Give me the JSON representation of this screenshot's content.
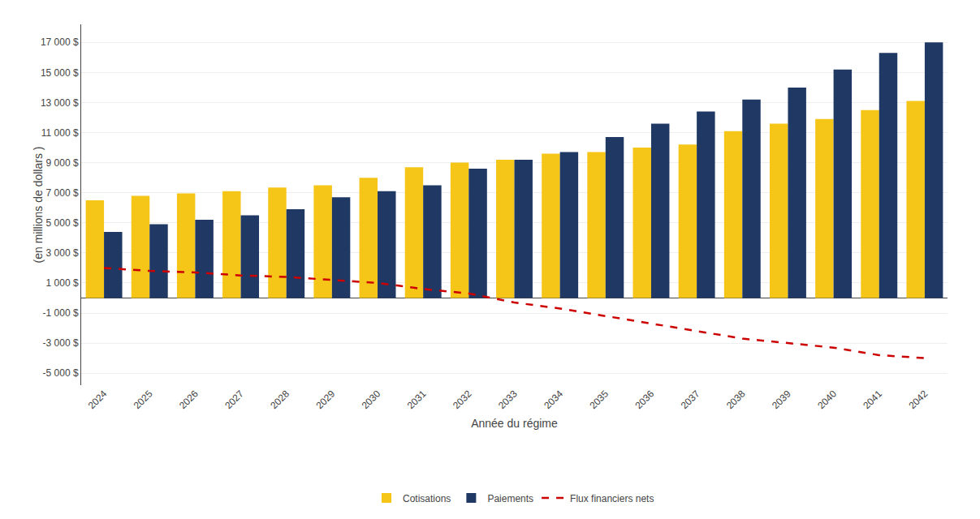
{
  "chart_data": {
    "type": "bar",
    "xlabel": "Année du régime",
    "ylabel": "(en millions de dollars )",
    "categories": [
      "2024",
      "2025",
      "2026",
      "2027",
      "2028",
      "2029",
      "2030",
      "2031",
      "2032",
      "2033",
      "2034",
      "2035",
      "2036",
      "2037",
      "2038",
      "2039",
      "2040",
      "2041",
      "2042"
    ],
    "series": [
      {
        "name": "Cotisations",
        "type": "bar",
        "color": "#F5C518",
        "values": [
          6500,
          6800,
          6950,
          7100,
          7350,
          7500,
          8000,
          8700,
          9000,
          9200,
          9600,
          9700,
          10000,
          10200,
          11100,
          11600,
          11900,
          12500,
          13100
        ]
      },
      {
        "name": "Paiements",
        "type": "bar",
        "color": "#1F3864",
        "values": [
          4400,
          4900,
          5200,
          5500,
          5900,
          6700,
          7100,
          7500,
          8600,
          9200,
          9700,
          10700,
          11600,
          12400,
          13200,
          14000,
          15200,
          16300,
          17000
        ]
      },
      {
        "name": "Flux financiers nets",
        "type": "line",
        "color": "#CC0000",
        "line_style": "dashed",
        "values": [
          2000,
          1800,
          1700,
          1500,
          1400,
          1200,
          1000,
          600,
          300,
          -300,
          -700,
          -1200,
          -1700,
          -2200,
          -2700,
          -3000,
          -3300,
          -3800,
          -4000
        ]
      }
    ],
    "ylim": [
      -5800,
      18200
    ],
    "yticks": [
      {
        "value": -5000,
        "label": "-5 000 $"
      },
      {
        "value": -3000,
        "label": "-3 000 $"
      },
      {
        "value": -1000,
        "label": "-1 000 $"
      },
      {
        "value": 1000,
        "label": "1 000 $"
      },
      {
        "value": 3000,
        "label": "3 000 $"
      },
      {
        "value": 5000,
        "label": "5 000 $"
      },
      {
        "value": 7000,
        "label": "7 000 $"
      },
      {
        "value": 9000,
        "label": "9 000 $"
      },
      {
        "value": 11000,
        "label": "11 000 $"
      },
      {
        "value": 13000,
        "label": "13 000 $"
      },
      {
        "value": 15000,
        "label": "15 000 $"
      },
      {
        "value": 17000,
        "label": "17 000 $"
      }
    ],
    "grid": true,
    "legend": "bottom"
  }
}
